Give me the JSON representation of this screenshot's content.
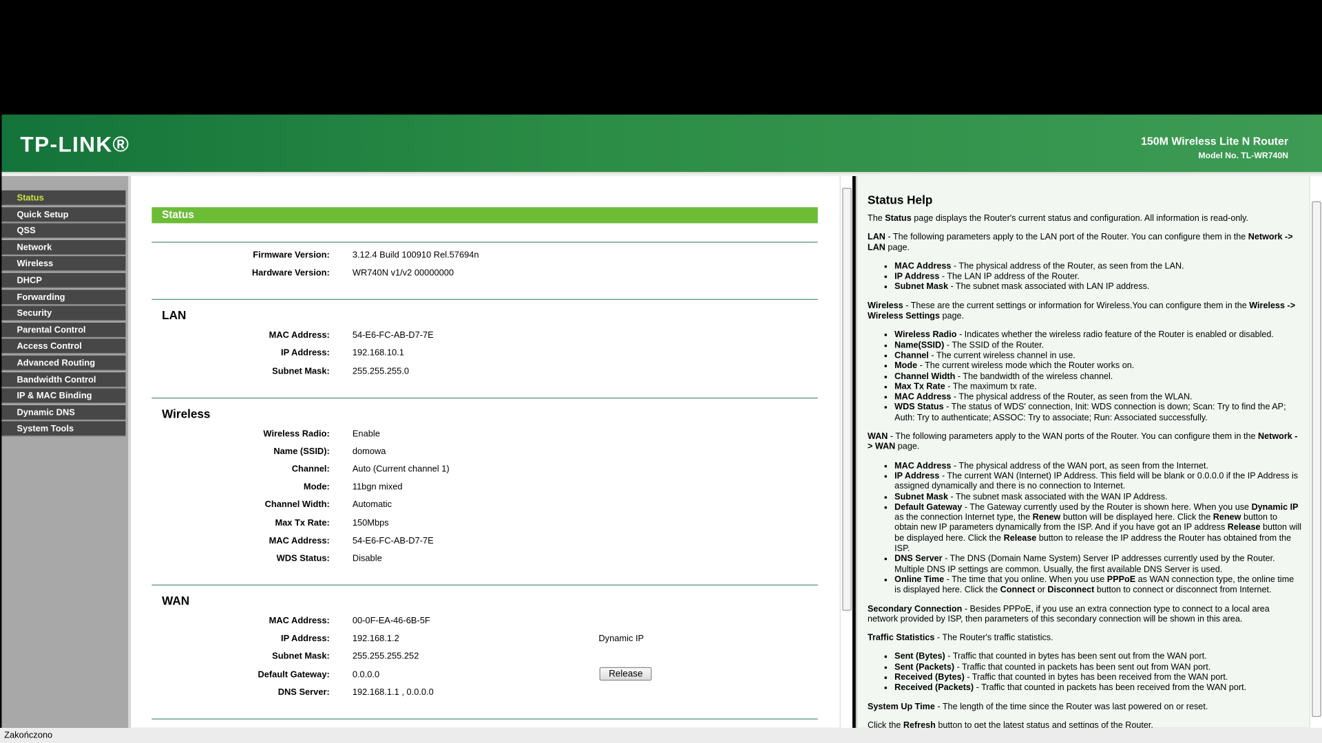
{
  "header": {
    "logo": "TP-LINK®",
    "product": "150M Wireless Lite N Router",
    "model": "Model No. TL-WR740N"
  },
  "menu": [
    "Status",
    "Quick Setup",
    "QSS",
    "Network",
    "Wireless",
    "DHCP",
    "Forwarding",
    "Security",
    "Parental Control",
    "Access Control",
    "Advanced Routing",
    "Bandwidth Control",
    "IP & MAC Binding",
    "Dynamic DNS",
    "System Tools"
  ],
  "main": {
    "title": "Status",
    "sections": [
      {
        "rows": [
          {
            "label": "Firmware Version:",
            "value": "3.12.4 Build 100910 Rel.57694n"
          },
          {
            "label": "Hardware Version:",
            "value": "WR740N v1/v2 00000000"
          }
        ]
      },
      {
        "heading": "LAN",
        "rows": [
          {
            "label": "MAC Address:",
            "value": "54-E6-FC-AB-D7-7E"
          },
          {
            "label": "IP Address:",
            "value": "192.168.10.1"
          },
          {
            "label": "Subnet Mask:",
            "value": "255.255.255.0"
          }
        ]
      },
      {
        "heading": "Wireless",
        "rows": [
          {
            "label": "Wireless Radio:",
            "value": "Enable"
          },
          {
            "label": "Name (SSID):",
            "value": "domowa"
          },
          {
            "label": "Channel:",
            "value": "Auto (Current channel 1)"
          },
          {
            "label": "Mode:",
            "value": "11bgn mixed"
          },
          {
            "label": "Channel Width:",
            "value": "Automatic"
          },
          {
            "label": "Max Tx Rate:",
            "value": "150Mbps"
          },
          {
            "label": "MAC Address:",
            "value": "54-E6-FC-AB-D7-7E"
          },
          {
            "label": "WDS Status:",
            "value": "Disable"
          }
        ]
      },
      {
        "heading": "WAN",
        "rows": [
          {
            "label": "MAC Address:",
            "value": "00-0F-EA-46-6B-5F"
          },
          {
            "label": "IP Address:",
            "value": "192.168.1.2",
            "extra": "Dynamic IP"
          },
          {
            "label": "Subnet Mask:",
            "value": "255.255.255.252"
          },
          {
            "label": "Default Gateway:",
            "value": "0.0.0.0",
            "button": "Release"
          },
          {
            "label": "DNS Server:",
            "value": "192.168.1.1 , 0.0.0.0"
          }
        ]
      }
    ]
  },
  "help": {
    "title": "Status Help",
    "blocks": [
      {
        "p": [
          {
            "t": "The "
          },
          {
            "b": "Status"
          },
          {
            "t": " page displays the Router's current status and configuration. All information is read-only."
          }
        ]
      },
      {
        "p": [
          {
            "b": "LAN"
          },
          {
            "t": " - The following parameters apply to the LAN port of the Router. You can configure them in the "
          },
          {
            "b": "Network -> LAN"
          },
          {
            "t": " page."
          }
        ]
      },
      {
        "ul": [
          [
            {
              "b": "MAC Address"
            },
            {
              "t": " - The physical address of the Router, as seen from the LAN."
            }
          ],
          [
            {
              "b": "IP Address"
            },
            {
              "t": " - The LAN IP address of the Router."
            }
          ],
          [
            {
              "b": "Subnet Mask"
            },
            {
              "t": " - The subnet mask associated with LAN IP address."
            }
          ]
        ]
      },
      {
        "p": [
          {
            "b": "Wireless"
          },
          {
            "t": " - These are the current settings or information for Wireless.You can configure them in the "
          },
          {
            "b": "Wireless -> Wireless Settings"
          },
          {
            "t": " page."
          }
        ]
      },
      {
        "ul": [
          [
            {
              "b": "Wireless Radio"
            },
            {
              "t": " - Indicates whether the wireless radio feature of the Router is enabled or disabled."
            }
          ],
          [
            {
              "b": "Name(SSID)"
            },
            {
              "t": " - The SSID of the Router."
            }
          ],
          [
            {
              "b": "Channel"
            },
            {
              "t": " - The current wireless channel in use."
            }
          ],
          [
            {
              "b": "Mode"
            },
            {
              "t": " - The current wireless mode which the Router works on."
            }
          ],
          [
            {
              "b": "Channel Width"
            },
            {
              "t": " - The bandwidth of the wireless channel."
            }
          ],
          [
            {
              "b": "Max Tx Rate"
            },
            {
              "t": " - The maximum tx rate."
            }
          ],
          [
            {
              "b": "MAC Address"
            },
            {
              "t": " - The physical address of the Router, as seen from the WLAN."
            }
          ],
          [
            {
              "b": "WDS Status"
            },
            {
              "t": " - The status of WDS' connection, Init: WDS connection is down; Scan: Try to find the AP; Auth: Try to authenticate; ASSOC: Try to associate; Run: Associated successfully."
            }
          ]
        ]
      },
      {
        "p": [
          {
            "b": "WAN"
          },
          {
            "t": " - The following parameters apply to the WAN ports of the Router. You can configure them in the "
          },
          {
            "b": "Network -> WAN"
          },
          {
            "t": " page."
          }
        ]
      },
      {
        "ul": [
          [
            {
              "b": "MAC Address"
            },
            {
              "t": " - The physical address of the WAN port, as seen from the Internet."
            }
          ],
          [
            {
              "b": "IP Address"
            },
            {
              "t": " - The current WAN (Internet) IP Address. This field will be blank or 0.0.0.0 if the IP Address is assigned dynamically and there is no connection to Internet."
            }
          ],
          [
            {
              "b": "Subnet Mask"
            },
            {
              "t": " - The subnet mask associated with the WAN IP Address."
            }
          ],
          [
            {
              "b": "Default Gateway"
            },
            {
              "t": " - The Gateway currently used by the Router is shown here. When you use "
            },
            {
              "b": "Dynamic IP"
            },
            {
              "t": " as the connection Internet type, the "
            },
            {
              "b": "Renew"
            },
            {
              "t": " button will be displayed here. Click the "
            },
            {
              "b": "Renew"
            },
            {
              "t": " button to obtain new IP parameters dynamically from the ISP. And if you have got an IP address "
            },
            {
              "b": "Release"
            },
            {
              "t": " button will be displayed here. Click the "
            },
            {
              "b": "Release"
            },
            {
              "t": " button to release the IP address the Router has obtained from the ISP."
            }
          ],
          [
            {
              "b": "DNS Server"
            },
            {
              "t": " - The DNS (Domain Name System) Server IP addresses currently used by the Router. Multiple DNS IP settings are common. Usually, the first available DNS Server is used."
            }
          ],
          [
            {
              "b": "Online Time"
            },
            {
              "t": " - The time that you online. When you use "
            },
            {
              "b": "PPPoE"
            },
            {
              "t": " as WAN connection type, the online time is displayed here. Click the "
            },
            {
              "b": "Connect"
            },
            {
              "t": " or "
            },
            {
              "b": "Disconnect"
            },
            {
              "t": " button to connect or disconnect from Internet."
            }
          ]
        ]
      },
      {
        "p": [
          {
            "b": "Secondary Connection"
          },
          {
            "t": " - Besides PPPoE, if you use an extra connection type to connect to a local area network provided by ISP, then parameters of this secondary connection will be shown in this area."
          }
        ]
      },
      {
        "p": [
          {
            "b": "Traffic Statistics"
          },
          {
            "t": " - The Router's traffic statistics."
          }
        ]
      },
      {
        "ul": [
          [
            {
              "b": "Sent (Bytes)"
            },
            {
              "t": " - Traffic that counted in bytes has been sent out from the WAN port."
            }
          ],
          [
            {
              "b": "Sent (Packets)"
            },
            {
              "t": " - Traffic that counted in packets has been sent out from WAN port."
            }
          ],
          [
            {
              "b": "Received (Bytes)"
            },
            {
              "t": " - Traffic that counted in bytes has been received from the WAN port."
            }
          ],
          [
            {
              "b": "Received (Packets)"
            },
            {
              "t": " - Traffic that counted in packets has been received from the WAN port."
            }
          ]
        ]
      },
      {
        "p": [
          {
            "b": "System Up Time"
          },
          {
            "t": " - The length of the time since the Router was last powered on or reset."
          }
        ]
      },
      {
        "p": [
          {
            "t": "Click the "
          },
          {
            "b": "Refresh"
          },
          {
            "t": " button to get the latest status and settings of the Router."
          }
        ]
      }
    ]
  },
  "statusbar": "Zakończono"
}
